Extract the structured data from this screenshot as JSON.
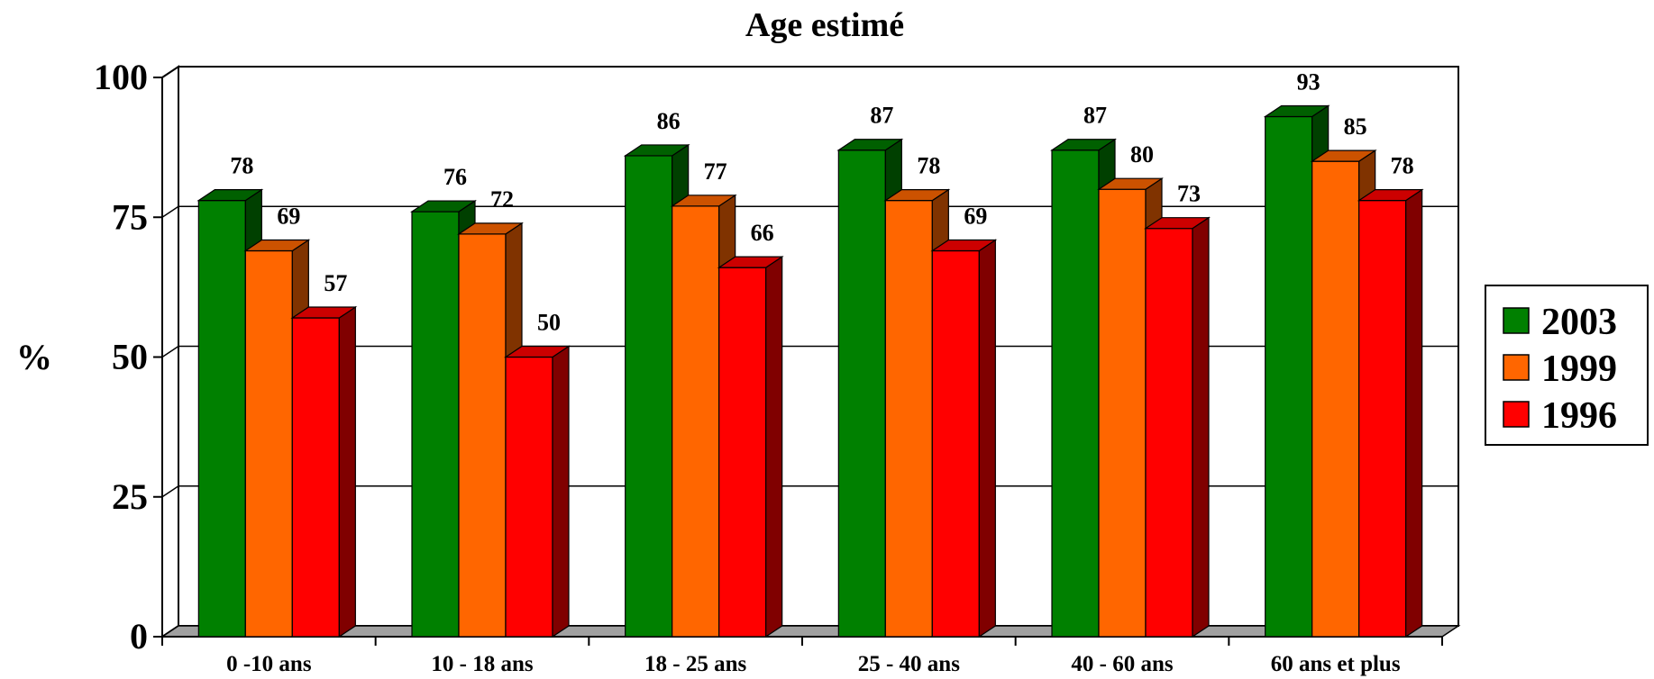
{
  "chart_data": {
    "type": "bar",
    "title": "Age estimé",
    "ylabel": "%",
    "xlabel": "",
    "ylim": [
      0,
      100
    ],
    "yticks": [
      0,
      25,
      50,
      75,
      100
    ],
    "grid": true,
    "legend_position": "right",
    "categories": [
      "0 -10 ans",
      "10 - 18 ans",
      "18 - 25 ans",
      "25 - 40 ans",
      "40 - 60 ans",
      "60 ans et plus"
    ],
    "series": [
      {
        "name": "2003",
        "values": [
          78,
          76,
          86,
          87,
          87,
          93
        ],
        "color": "#008000",
        "side_color": "#004000",
        "top_color": "#006000"
      },
      {
        "name": "1999",
        "values": [
          69,
          72,
          77,
          78,
          80,
          85
        ],
        "color": "#FF6600",
        "side_color": "#803300",
        "top_color": "#CC5200"
      },
      {
        "name": "1996",
        "values": [
          57,
          50,
          66,
          69,
          73,
          78
        ],
        "color": "#FF0000",
        "side_color": "#800000",
        "top_color": "#CC0000"
      }
    ],
    "data_labels": true
  }
}
